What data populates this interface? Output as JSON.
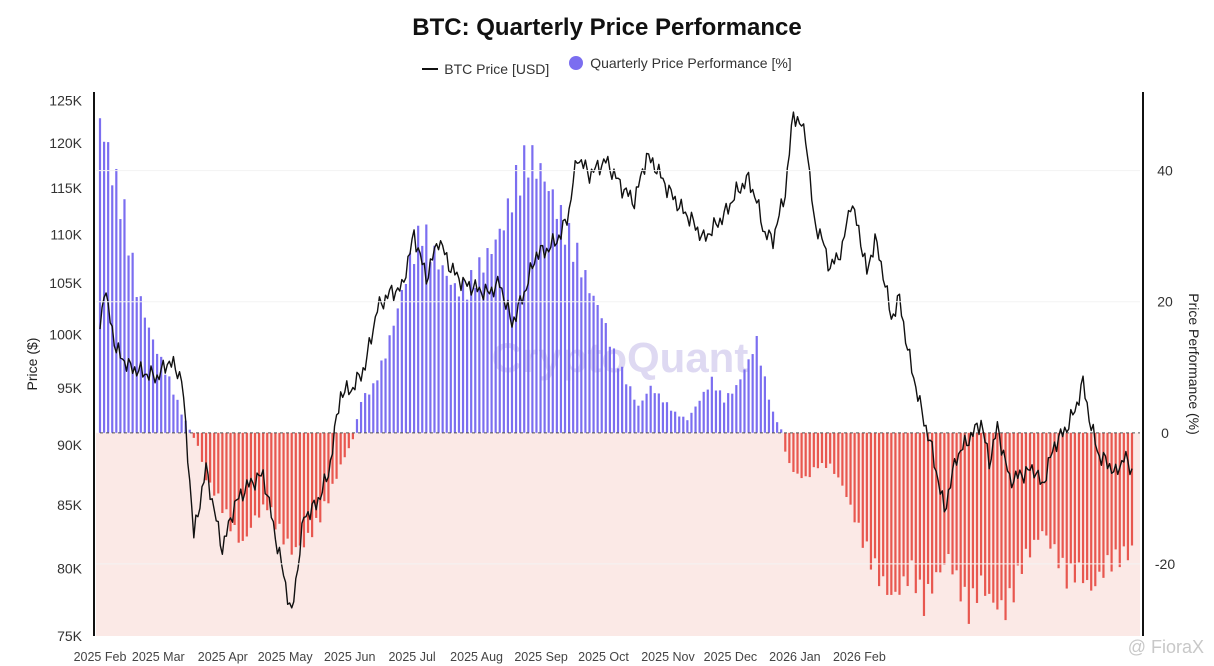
{
  "chart_data": {
    "type": "bar+line",
    "title": "BTC: Quarterly Price Performance",
    "legend": [
      {
        "name": "BTC Price [USD]",
        "marker": "line",
        "color": "#111111"
      },
      {
        "name": "Quarterly Price Performance [%]",
        "marker": "circle",
        "color": "#7b6ef0"
      }
    ],
    "xlabel": "",
    "ylabel_left": "Price ($)",
    "ylabel_right": "Price Performance (%)",
    "x_tick_labels": [
      "2025 Feb",
      "2025 Mar",
      "2025 Apr",
      "2025 May",
      "2025 Jun",
      "2025 Jul",
      "2025 Aug",
      "2025 Sep",
      "2025 Oct",
      "2025 Nov",
      "2025 Dec",
      "2026 Jan",
      "2026 Feb"
    ],
    "left_axis": {
      "scale": "log",
      "range": [
        75000,
        126000
      ],
      "tick_values": [
        75000,
        80000,
        85000,
        90000,
        95000,
        100000,
        105000,
        110000,
        115000,
        120000,
        125000
      ],
      "tick_labels": [
        "75K",
        "80K",
        "85K",
        "90K",
        "95K",
        "100K",
        "105K",
        "110K",
        "115K",
        "120K",
        "125K"
      ]
    },
    "right_axis": {
      "range": [
        -31,
        52
      ],
      "tick_values": [
        -20,
        0,
        20,
        40
      ],
      "tick_labels": [
        "-20",
        "0",
        "20",
        "40"
      ]
    },
    "price_anchors_usd": [
      [
        0,
        100500
      ],
      [
        2,
        104500
      ],
      [
        8,
        98500
      ],
      [
        14,
        97000
      ],
      [
        20,
        96500
      ],
      [
        28,
        96000
      ],
      [
        34,
        97500
      ],
      [
        40,
        96000
      ],
      [
        46,
        82500
      ],
      [
        52,
        88000
      ],
      [
        56,
        84500
      ],
      [
        60,
        81500
      ],
      [
        66,
        85000
      ],
      [
        72,
        86500
      ],
      [
        80,
        87500
      ],
      [
        86,
        82500
      ],
      [
        94,
        76500
      ],
      [
        100,
        84000
      ],
      [
        106,
        85000
      ],
      [
        112,
        87500
      ],
      [
        118,
        94500
      ],
      [
        124,
        95000
      ],
      [
        130,
        97000
      ],
      [
        136,
        102500
      ],
      [
        142,
        104000
      ],
      [
        148,
        104500
      ],
      [
        154,
        110000
      ],
      [
        160,
        105500
      ],
      [
        166,
        109500
      ],
      [
        172,
        106500
      ],
      [
        178,
        105000
      ],
      [
        184,
        104500
      ],
      [
        190,
        104000
      ],
      [
        196,
        105000
      ],
      [
        202,
        101000
      ],
      [
        208,
        104000
      ],
      [
        214,
        108000
      ],
      [
        220,
        108500
      ],
      [
        226,
        110000
      ],
      [
        230,
        112500
      ],
      [
        234,
        118500
      ],
      [
        240,
        116500
      ],
      [
        248,
        118000
      ],
      [
        256,
        115000
      ],
      [
        262,
        113500
      ],
      [
        268,
        118500
      ],
      [
        272,
        117500
      ],
      [
        278,
        115000
      ],
      [
        284,
        113000
      ],
      [
        290,
        111500
      ],
      [
        296,
        109500
      ],
      [
        300,
        110500
      ],
      [
        306,
        112000
      ],
      [
        312,
        114500
      ],
      [
        318,
        116000
      ],
      [
        322,
        113500
      ],
      [
        326,
        110000
      ],
      [
        330,
        109500
      ],
      [
        336,
        114500
      ],
      [
        340,
        123500
      ],
      [
        346,
        121000
      ],
      [
        350,
        111500
      ],
      [
        354,
        109500
      ],
      [
        358,
        106500
      ],
      [
        364,
        108500
      ],
      [
        368,
        113500
      ],
      [
        372,
        110500
      ],
      [
        376,
        106000
      ],
      [
        380,
        109500
      ],
      [
        384,
        106000
      ],
      [
        388,
        101500
      ],
      [
        392,
        103500
      ],
      [
        396,
        98500
      ],
      [
        402,
        93500
      ],
      [
        408,
        89500
      ],
      [
        414,
        84500
      ],
      [
        420,
        89000
      ],
      [
        426,
        90500
      ],
      [
        432,
        92000
      ],
      [
        436,
        88500
      ],
      [
        440,
        91500
      ],
      [
        446,
        87000
      ],
      [
        452,
        87500
      ],
      [
        458,
        88000
      ],
      [
        462,
        86500
      ],
      [
        468,
        90000
      ],
      [
        474,
        91500
      ],
      [
        478,
        93000
      ],
      [
        482,
        95500
      ],
      [
        486,
        91500
      ],
      [
        490,
        89000
      ],
      [
        494,
        88500
      ],
      [
        498,
        87500
      ],
      [
        502,
        89000
      ],
      [
        506,
        87800
      ]
    ],
    "performance_anchors_pct": [
      [
        0,
        48
      ],
      [
        6,
        40
      ],
      [
        12,
        33
      ],
      [
        18,
        22
      ],
      [
        26,
        14
      ],
      [
        34,
        8
      ],
      [
        40,
        3
      ],
      [
        44,
        0.5
      ],
      [
        48,
        -2
      ],
      [
        52,
        -7
      ],
      [
        58,
        -10
      ],
      [
        64,
        -14
      ],
      [
        70,
        -17
      ],
      [
        76,
        -13
      ],
      [
        82,
        -11
      ],
      [
        88,
        -15
      ],
      [
        94,
        -18
      ],
      [
        100,
        -17
      ],
      [
        106,
        -14
      ],
      [
        112,
        -10
      ],
      [
        118,
        -5
      ],
      [
        124,
        -1
      ],
      [
        128,
        5
      ],
      [
        134,
        7
      ],
      [
        140,
        12
      ],
      [
        146,
        19
      ],
      [
        152,
        26
      ],
      [
        158,
        31
      ],
      [
        162,
        28
      ],
      [
        168,
        25
      ],
      [
        174,
        22
      ],
      [
        180,
        22
      ],
      [
        186,
        25
      ],
      [
        192,
        28
      ],
      [
        198,
        32
      ],
      [
        204,
        38
      ],
      [
        210,
        42
      ],
      [
        216,
        40
      ],
      [
        222,
        36
      ],
      [
        228,
        31
      ],
      [
        234,
        27
      ],
      [
        240,
        22
      ],
      [
        246,
        18
      ],
      [
        252,
        12
      ],
      [
        258,
        8
      ],
      [
        264,
        4
      ],
      [
        270,
        7
      ],
      [
        276,
        5
      ],
      [
        282,
        3
      ],
      [
        288,
        2
      ],
      [
        294,
        5
      ],
      [
        300,
        8
      ],
      [
        306,
        5
      ],
      [
        312,
        7
      ],
      [
        318,
        11
      ],
      [
        322,
        14
      ],
      [
        326,
        8
      ],
      [
        330,
        3
      ],
      [
        334,
        0.5
      ],
      [
        336,
        -3
      ],
      [
        340,
        -6
      ],
      [
        346,
        -7
      ],
      [
        352,
        -5
      ],
      [
        358,
        -5
      ],
      [
        364,
        -8
      ],
      [
        370,
        -13
      ],
      [
        376,
        -18
      ],
      [
        382,
        -22
      ],
      [
        388,
        -25
      ],
      [
        392,
        -24
      ],
      [
        398,
        -21
      ],
      [
        404,
        -26
      ],
      [
        410,
        -22
      ],
      [
        416,
        -19
      ],
      [
        422,
        -24
      ],
      [
        426,
        -27
      ],
      [
        432,
        -23
      ],
      [
        438,
        -26
      ],
      [
        444,
        -27
      ],
      [
        448,
        -24
      ],
      [
        452,
        -20
      ],
      [
        456,
        -18
      ],
      [
        462,
        -15
      ],
      [
        468,
        -18
      ],
      [
        474,
        -22
      ],
      [
        480,
        -21
      ],
      [
        486,
        -24
      ],
      [
        490,
        -22
      ],
      [
        494,
        -20
      ],
      [
        500,
        -19
      ],
      [
        506,
        -18
      ]
    ],
    "watermark": "CryptoQuant"
  },
  "footer": {
    "credit": "@ FioraX"
  },
  "colors": {
    "price_line": "#111111",
    "positive_bar": "#7b6ef0",
    "negative_bar": "#e8574f",
    "negative_fill": "#fbe9e6",
    "zero_line": "#555555"
  }
}
